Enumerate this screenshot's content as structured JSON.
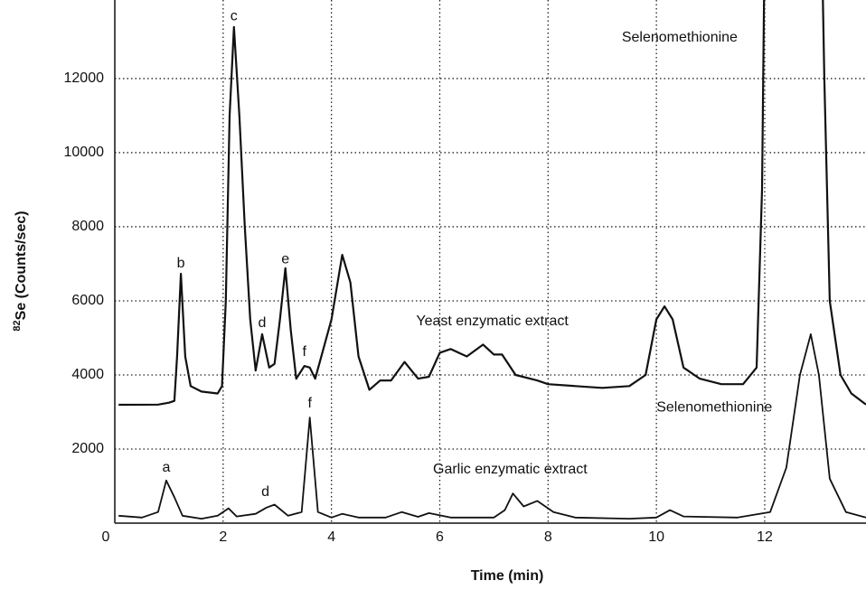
{
  "chart_data": {
    "type": "line",
    "xlabel": "Time (min)",
    "ylabel": {
      "superscript": "82",
      "text": "Se (Counts/sec)"
    },
    "xlim": [
      0,
      13.87
    ],
    "ylim": [
      0,
      14120
    ],
    "xticks": [
      0,
      2,
      4,
      6,
      8,
      10,
      12
    ],
    "yticks": [
      2000,
      4000,
      6000,
      8000,
      10000,
      12000
    ],
    "grid": true,
    "series": [
      {
        "name": "Yeast enzymatic extract",
        "color": "#111111",
        "label_x": 6.97,
        "label_y": 5440,
        "x": [
          0.07,
          0.8,
          1.0,
          1.1,
          1.15,
          1.22,
          1.3,
          1.4,
          1.6,
          1.9,
          1.98,
          2.05,
          2.12,
          2.2,
          2.3,
          2.4,
          2.5,
          2.6,
          2.72,
          2.85,
          2.95,
          3.05,
          3.15,
          3.25,
          3.35,
          3.5,
          3.6,
          3.7,
          3.85,
          4.0,
          4.2,
          4.35,
          4.5,
          4.7,
          4.9,
          5.1,
          5.35,
          5.6,
          5.8,
          6.0,
          6.2,
          6.5,
          6.8,
          7.0,
          7.15,
          7.4,
          7.8,
          8.0,
          8.5,
          9.0,
          9.5,
          9.8,
          10.0,
          10.15,
          10.3,
          10.5,
          10.8,
          11.2,
          11.6,
          11.85,
          11.95,
          12.0,
          13.05,
          13.1,
          13.2,
          13.4,
          13.6,
          13.87
        ],
        "values": [
          3195,
          3200,
          3250,
          3300,
          4500,
          6730,
          4500,
          3700,
          3550,
          3500,
          3700,
          6000,
          11000,
          13390,
          11000,
          8000,
          5500,
          4120,
          5100,
          4200,
          4300,
          5500,
          6880,
          5200,
          3900,
          4240,
          4200,
          3900,
          4700,
          5500,
          7240,
          6500,
          4500,
          3600,
          3850,
          3850,
          4350,
          3900,
          3950,
          4600,
          4700,
          4500,
          4820,
          4550,
          4550,
          4000,
          3850,
          3750,
          3700,
          3650,
          3700,
          4000,
          5500,
          5850,
          5500,
          4200,
          3900,
          3750,
          3750,
          4200,
          9000,
          16000,
          16000,
          12000,
          6000,
          4000,
          3500,
          3200
        ]
      },
      {
        "name": "Garlic enzymatic extract",
        "color": "#111111",
        "label_x": 7.3,
        "label_y": 1440,
        "x": [
          0.07,
          0.5,
          0.8,
          0.95,
          1.1,
          1.25,
          1.6,
          1.9,
          2.1,
          2.25,
          2.6,
          2.8,
          2.95,
          3.2,
          3.45,
          3.6,
          3.75,
          4.0,
          4.2,
          4.5,
          5.0,
          5.3,
          5.6,
          5.8,
          6.2,
          7.0,
          7.2,
          7.35,
          7.55,
          7.8,
          8.1,
          8.5,
          9.5,
          10.0,
          10.25,
          10.5,
          11.5,
          12.1,
          12.4,
          12.65,
          12.85,
          13.0,
          13.2,
          13.5,
          13.87
        ],
        "values": [
          200,
          150,
          300,
          1150,
          700,
          200,
          120,
          200,
          400,
          180,
          250,
          420,
          500,
          200,
          300,
          2850,
          300,
          150,
          250,
          150,
          150,
          300,
          170,
          270,
          150,
          150,
          350,
          800,
          450,
          600,
          300,
          150,
          120,
          150,
          350,
          180,
          150,
          300,
          1500,
          4000,
          5100,
          4000,
          1200,
          300,
          150
        ]
      }
    ],
    "annotations": [
      {
        "text": "a",
        "x": 0.95,
        "y": 1490
      },
      {
        "text": "b",
        "x": 1.22,
        "y": 7000
      },
      {
        "text": "c",
        "x": 2.2,
        "y": 13680
      },
      {
        "text": "d",
        "x": 2.72,
        "y": 5400
      },
      {
        "text": "e",
        "x": 3.15,
        "y": 7120
      },
      {
        "text": "f",
        "x": 3.5,
        "y": 4610
      },
      {
        "text": "d",
        "x": 2.78,
        "y": 830
      },
      {
        "text": "f",
        "x": 3.6,
        "y": 3220
      },
      {
        "text": "Selenomethionine",
        "x": 10.43,
        "y": 13100
      },
      {
        "text": "Selenomethionine",
        "x": 11.07,
        "y": 3120
      }
    ]
  }
}
